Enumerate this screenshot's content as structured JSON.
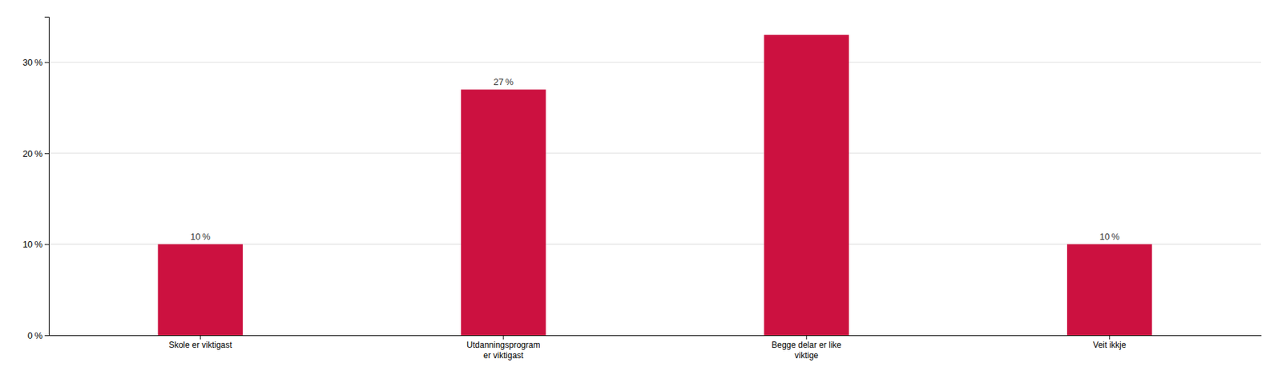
{
  "chart_data": {
    "type": "bar",
    "categories": [
      "Skole er viktigast",
      "Utdanningsprogram\ner viktigast",
      "Begge delar er like\nviktige",
      "Veit ikkje"
    ],
    "values": [
      10,
      27,
      33,
      10
    ],
    "value_labels": [
      "10 %",
      "27 %",
      null,
      "10 %"
    ],
    "data_labels": true,
    "color": "#CC1140",
    "ylim": [
      0,
      35
    ],
    "yticks": [
      {
        "value": 0,
        "label": "0 %"
      },
      {
        "value": 10,
        "label": "10 %"
      },
      {
        "value": 20,
        "label": "20 %"
      },
      {
        "value": 30,
        "label": "30 %"
      }
    ],
    "grid": true
  }
}
